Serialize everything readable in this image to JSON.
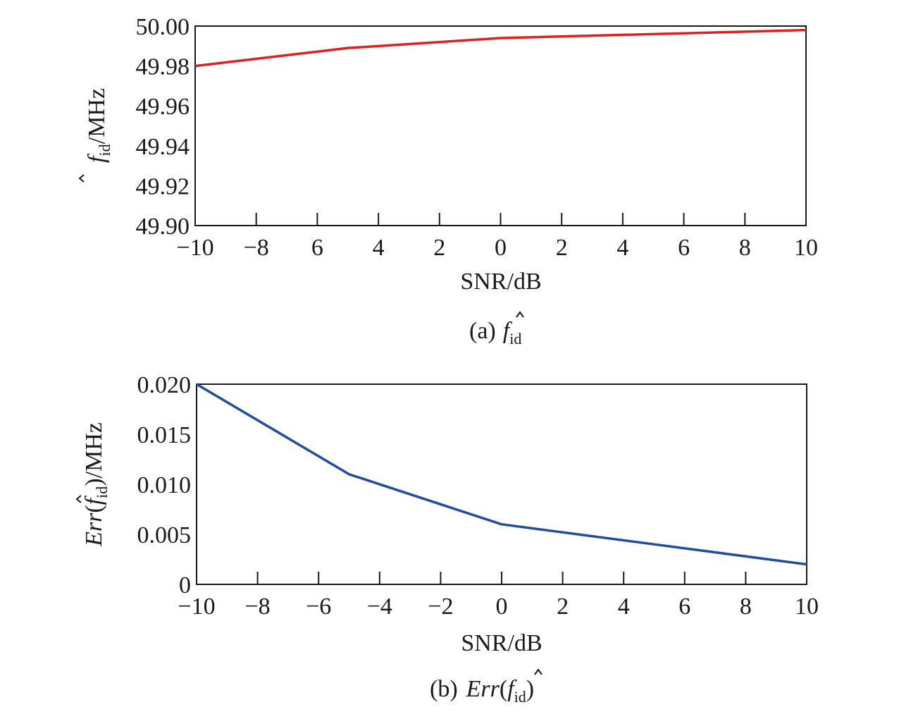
{
  "chart_data": [
    {
      "type": "line",
      "panel": "a",
      "x": [
        -10,
        -5,
        0,
        5,
        10
      ],
      "series": [
        {
          "values": [
            49.98,
            49.989,
            49.994,
            49.996,
            49.998
          ],
          "color": "#e02020"
        }
      ],
      "xlim": [
        -10,
        10
      ],
      "ylim": [
        49.9,
        50.0
      ],
      "x_tick_labels": [
        "−10",
        "−8",
        "6",
        "4",
        "2",
        "0",
        "2",
        "4",
        "6",
        "8",
        "10"
      ],
      "y_tick_labels": [
        "50.00",
        "49.98",
        "49.96",
        "49.94",
        "49.92",
        "49.90"
      ],
      "xlabel": "SNR/dB",
      "ylabel": {
        "base": "f",
        "sub": "id",
        "unit": "/MHz"
      },
      "caption": {
        "prefix": "(a)",
        "base": "f",
        "sub": "id"
      },
      "grid": false
    },
    {
      "type": "line",
      "panel": "b",
      "x": [
        -10,
        -5,
        0,
        5,
        10
      ],
      "series": [
        {
          "values": [
            0.02,
            0.011,
            0.006,
            0.004,
            0.002
          ],
          "color": "#1f4ea0"
        }
      ],
      "xlim": [
        -10,
        10
      ],
      "ylim": [
        0,
        0.02
      ],
      "x_tick_labels": [
        "−10",
        "−8",
        "−6",
        "−4",
        "−2",
        "0",
        "2",
        "4",
        "6",
        "8",
        "10"
      ],
      "y_tick_labels": [
        "0.020",
        "0.015",
        "0.010",
        "0.005",
        "0"
      ],
      "xlabel": "SNR/dB",
      "ylabel": {
        "func": "Err",
        "open": "(",
        "base": "f",
        "sub": "id",
        "close": ")",
        "unit": "/MHz"
      },
      "caption": {
        "prefix": "(b)",
        "func": "Err",
        "open": "(",
        "base": "f",
        "sub": "id",
        "close": ")"
      },
      "grid": false
    }
  ]
}
